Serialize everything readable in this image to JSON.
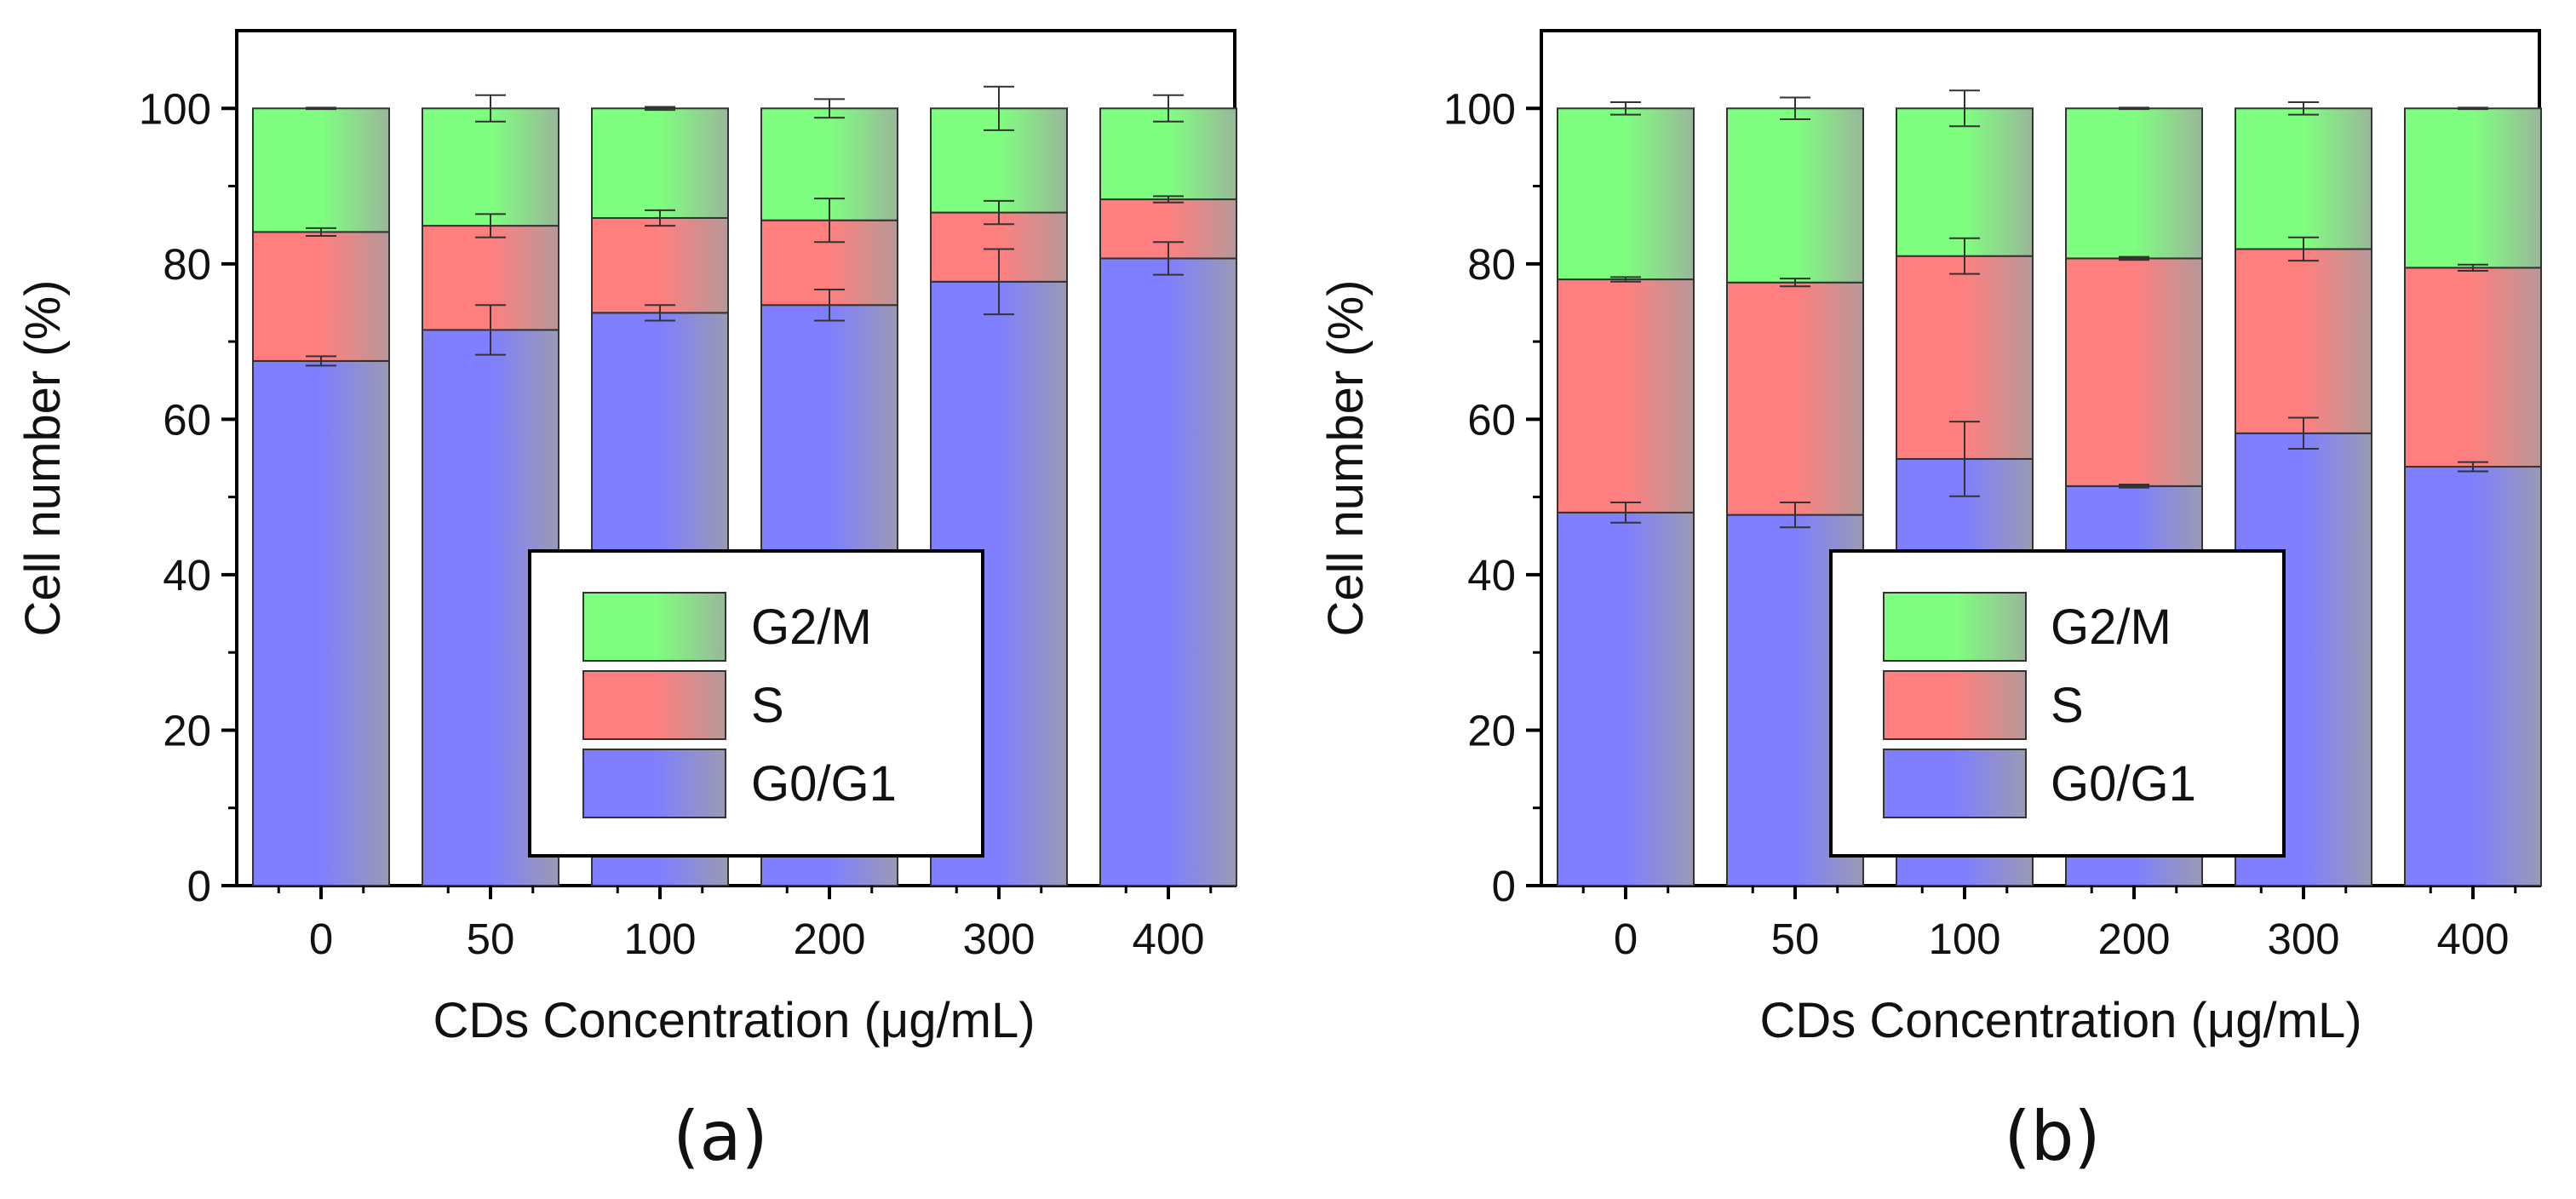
{
  "colors": {
    "G0/G1": "#7f7fff",
    "S": "#ff7f7f",
    "G2/M": "#7fff7f",
    "frame": "#000000"
  },
  "chart_data": [
    {
      "type": "bar",
      "stacked": true,
      "panel_label": "(a)",
      "xlabel": "CDs Concentration (μg/mL)",
      "ylabel": "Cell number (%)",
      "ylim": [
        0,
        110
      ],
      "yticks": [
        "0",
        "20",
        "40",
        "60",
        "80",
        "100"
      ],
      "categories": [
        "0",
        "50",
        "100",
        "200",
        "300",
        "400"
      ],
      "legend_position": "center-right",
      "legend_order": [
        "G2/M",
        "S",
        "G0/G1"
      ],
      "series": [
        {
          "name": "G0/G1",
          "values": [
            67.5,
            71.5,
            73.7,
            74.7,
            77.7,
            80.7
          ],
          "errors": [
            0.6,
            3.2,
            1.0,
            2.0,
            4.2,
            2.1
          ]
        },
        {
          "name": "S",
          "values": [
            16.6,
            13.4,
            12.2,
            10.9,
            8.9,
            7.6
          ],
          "errors": [
            0.5,
            1.5,
            1.0,
            2.8,
            1.5,
            0.4
          ]
        },
        {
          "name": "G2/M",
          "values": [
            15.9,
            15.1,
            14.1,
            14.4,
            13.4,
            11.7
          ],
          "errors": [
            0.1,
            1.7,
            0.2,
            1.2,
            2.8,
            1.7
          ]
        }
      ]
    },
    {
      "type": "bar",
      "stacked": true,
      "panel_label": "(b)",
      "xlabel": "CDs Concentration (μg/mL)",
      "ylabel": "Cell number (%)",
      "ylim": [
        0,
        110
      ],
      "yticks": [
        "0",
        "20",
        "40",
        "60",
        "80",
        "100"
      ],
      "categories": [
        "0",
        "50",
        "100",
        "200",
        "300",
        "400"
      ],
      "legend_position": "center",
      "legend_order": [
        "G2/M",
        "S",
        "G0/G1"
      ],
      "series": [
        {
          "name": "G0/G1",
          "values": [
            48.0,
            47.7,
            54.9,
            51.4,
            58.2,
            53.9
          ],
          "errors": [
            1.3,
            1.6,
            4.8,
            0.2,
            2.0,
            0.6
          ]
        },
        {
          "name": "S",
          "values": [
            30.0,
            29.9,
            26.1,
            29.3,
            23.7,
            25.6
          ],
          "errors": [
            0.3,
            0.5,
            2.3,
            0.2,
            1.5,
            0.4
          ]
        },
        {
          "name": "G2/M",
          "values": [
            22.0,
            22.4,
            19.0,
            19.3,
            18.1,
            20.5
          ],
          "errors": [
            0.8,
            1.4,
            2.3,
            0.1,
            0.8,
            0.1
          ]
        }
      ]
    }
  ]
}
